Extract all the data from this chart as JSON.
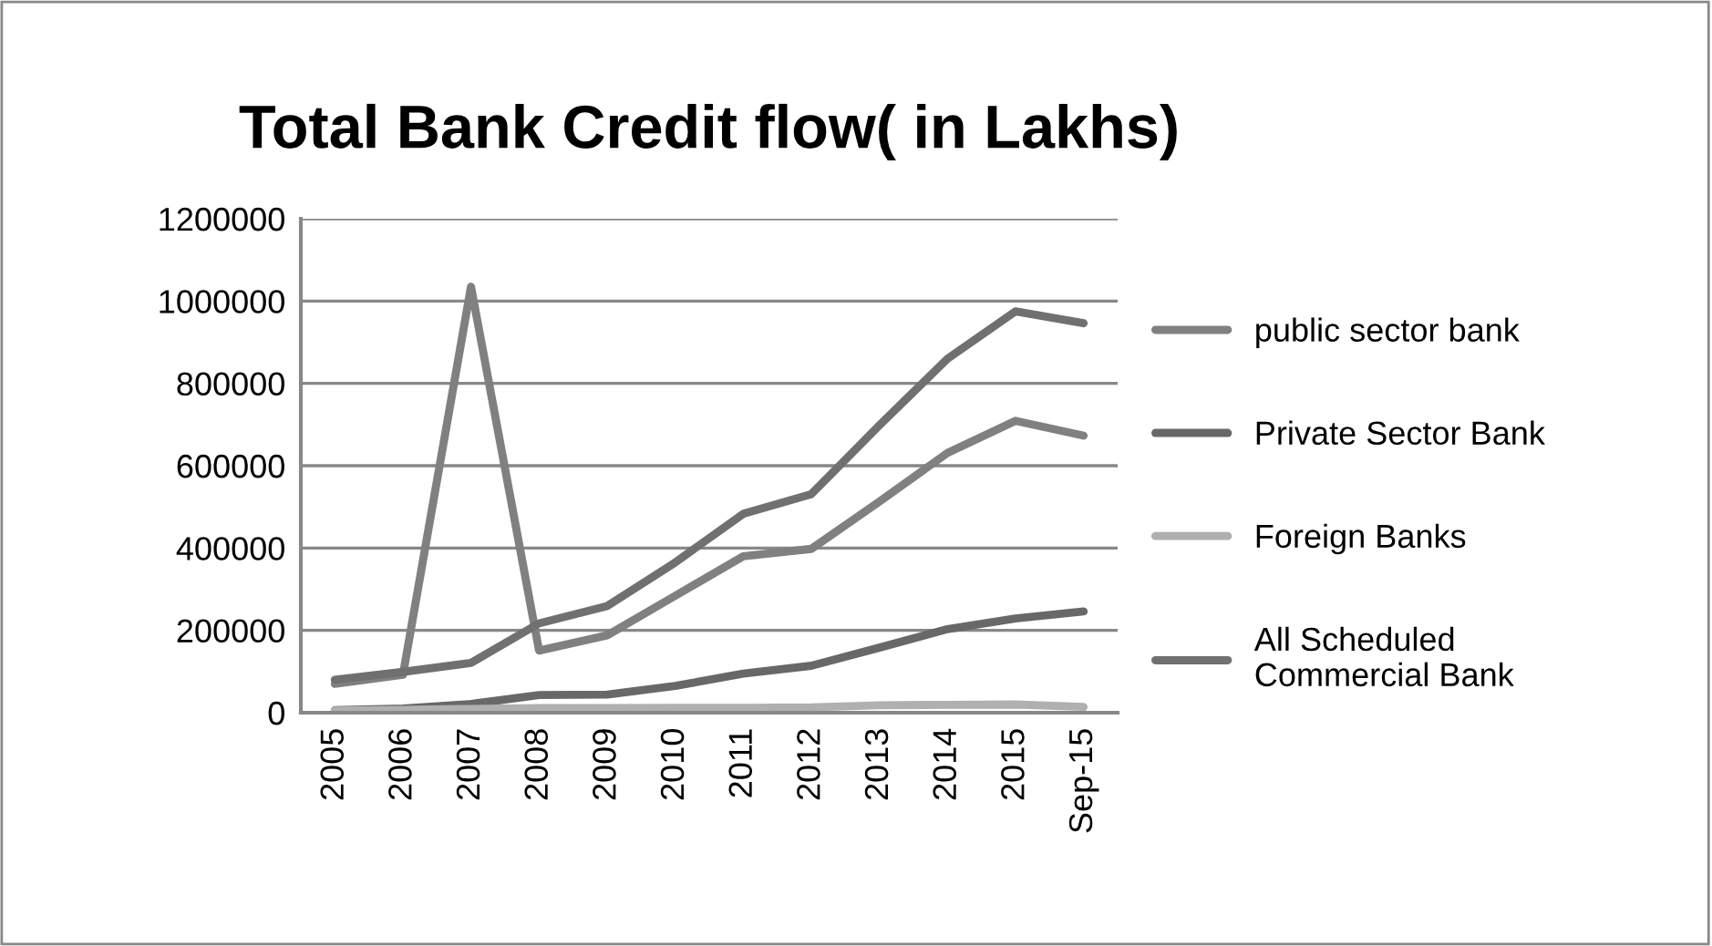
{
  "chart_data": {
    "type": "line",
    "title": "Total Bank Credit flow( in Lakhs)",
    "categories": [
      "2005",
      "2006",
      "2007",
      "2008",
      "2009",
      "2010",
      "2011",
      "2012",
      "2013",
      "2014",
      "2015",
      "Sep-15"
    ],
    "series": [
      {
        "name": "public sector bank",
        "color": "#808080",
        "values": [
          70000,
          92000,
          1035000,
          151000,
          188000,
          284000,
          380000,
          398000,
          513000,
          631000,
          709000,
          673000
        ]
      },
      {
        "name": "Private Sector Bank",
        "color": "#686868",
        "values": [
          6000,
          10000,
          21000,
          43000,
          44000,
          65000,
          95000,
          114000,
          158000,
          203000,
          229000,
          246000
        ]
      },
      {
        "name": "Foreign Banks",
        "color": "#b0b0b0",
        "values": [
          5000,
          7000,
          9000,
          11000,
          11000,
          12000,
          12000,
          13000,
          18000,
          19000,
          20000,
          14000
        ]
      },
      {
        "name": "All Scheduled\nCommercial Bank",
        "color": "#707070",
        "values": [
          80000,
          99000,
          121000,
          217000,
          259000,
          365000,
          483000,
          531000,
          698000,
          860000,
          975000,
          946000
        ]
      }
    ],
    "ylim": [
      0,
      1200000
    ],
    "yticks": [
      0,
      200000,
      400000,
      600000,
      800000,
      1000000,
      1200000
    ],
    "grid": "y",
    "legend": "right",
    "marker": "none",
    "line_style": "solid"
  }
}
